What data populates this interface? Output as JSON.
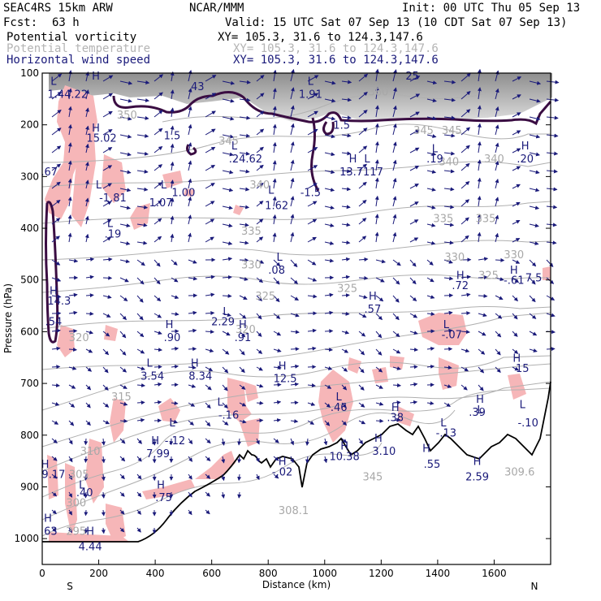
{
  "header": {
    "model": "SEAC4RS 15km ARW",
    "org": "NCAR/MMM",
    "init": "Init: 00 UTC Thu 05 Sep 13",
    "fcst_label": "Fcst:",
    "fcst_value": "63 h",
    "valid": "Valid: 15 UTC Sat 07 Sep 13 (10 CDT Sat 07 Sep 13)"
  },
  "legend": [
    {
      "name": "Potential vorticity",
      "xy": "XY= 105.3, 31.6 to 124.3,147.6",
      "color": "#000000"
    },
    {
      "name": "Potential temperature",
      "xy": "XY= 105.3, 31.6 to 124.3,147.6",
      "color": "#b4b4b4"
    },
    {
      "name": "Horizontal wind speed",
      "xy": "XY= 105.3, 31.6 to 124.3,147.6",
      "color": "#1a1a7a"
    }
  ],
  "chart_data": {
    "type": "cross-section",
    "xlabel": "Distance (km)",
    "ylabel": "Pressure (hPa)",
    "xlim": [
      0,
      1800
    ],
    "ylim": [
      1050,
      100
    ],
    "x_ticks": [
      "0",
      "200",
      "400",
      "600",
      "800",
      "1000",
      "1200",
      "1400",
      "1600"
    ],
    "x_tick_values": [
      0,
      200,
      400,
      600,
      800,
      1000,
      1200,
      1400,
      1600
    ],
    "y_ticks": [
      "100",
      "200",
      "300",
      "400",
      "500",
      "600",
      "700",
      "800",
      "900",
      "1000"
    ],
    "y_tick_values": [
      100,
      200,
      300,
      400,
      500,
      600,
      700,
      800,
      900,
      1000
    ],
    "endpoints": {
      "left": "S",
      "right": "N"
    },
    "theta_labels": [
      {
        "text": "350",
        "x": 300,
        "p": 180
      },
      {
        "text": "345",
        "x": 660,
        "p": 230
      },
      {
        "text": "345",
        "x": 1350,
        "p": 210
      },
      {
        "text": "345",
        "x": 1450,
        "p": 210
      },
      {
        "text": "340",
        "x": 770,
        "p": 315
      },
      {
        "text": "340",
        "x": 1440,
        "p": 270
      },
      {
        "text": "340",
        "x": 1600,
        "p": 265
      },
      {
        "text": "335",
        "x": 740,
        "p": 405
      },
      {
        "text": "335",
        "x": 1420,
        "p": 380
      },
      {
        "text": "335",
        "x": 1570,
        "p": 380
      },
      {
        "text": "330",
        "x": 740,
        "p": 470
      },
      {
        "text": "330",
        "x": 1460,
        "p": 455
      },
      {
        "text": "330",
        "x": 1670,
        "p": 450
      },
      {
        "text": "325",
        "x": 790,
        "p": 530
      },
      {
        "text": "325",
        "x": 1080,
        "p": 515
      },
      {
        "text": "325",
        "x": 1580,
        "p": 490
      },
      {
        "text": "320",
        "x": 130,
        "p": 610
      },
      {
        "text": "320",
        "x": 720,
        "p": 595
      },
      {
        "text": "315",
        "x": 280,
        "p": 725
      },
      {
        "text": "310",
        "x": 170,
        "p": 830
      },
      {
        "text": "305",
        "x": 130,
        "p": 875
      },
      {
        "text": "300",
        "x": 120,
        "p": 930
      },
      {
        "text": "295",
        "x": 120,
        "p": 985
      },
      {
        "text": "309.6",
        "x": 1690,
        "p": 870
      },
      {
        "text": "308.1",
        "x": 890,
        "p": 945
      },
      {
        "text": "360",
        "x": 1190,
        "p": 135
      },
      {
        "text": "345",
        "x": 1170,
        "p": 880
      }
    ],
    "hl_labels": [
      {
        "text": "L",
        "x": 40,
        "p": 115
      },
      {
        "text": "1.44.22",
        "x": 90,
        "p": 140
      },
      {
        "text": "H",
        "x": 190,
        "p": 105
      },
      {
        "text": "43",
        "x": 550,
        "p": 125
      },
      {
        "text": "L",
        "x": 950,
        "p": 115
      },
      {
        "text": "1.91",
        "x": 950,
        "p": 140
      },
      {
        "text": "25",
        "x": 1310,
        "p": 105
      },
      {
        "text": "H",
        "x": 190,
        "p": 205
      },
      {
        "text": "15.02",
        "x": 210,
        "p": 225
      },
      {
        "text": "1.5",
        "x": 460,
        "p": 220
      },
      {
        "text": "1.5",
        "x": 1060,
        "p": 200
      },
      {
        "text": "L",
        "x": 680,
        "p": 240
      },
      {
        "text": ".24.62",
        "x": 720,
        "p": 265
      },
      {
        "text": "L",
        "x": 1390,
        "p": 245
      },
      {
        "text": ".19",
        "x": 1390,
        "p": 265
      },
      {
        "text": "H",
        "x": 1710,
        "p": 240
      },
      {
        "text": ".20",
        "x": 1710,
        "p": 265
      },
      {
        "text": "H",
        "x": 1100,
        "p": 265
      },
      {
        "text": "L",
        "x": 1150,
        "p": 265
      },
      {
        "text": "13.7117",
        "x": 1130,
        "p": 290
      },
      {
        "text": ".67",
        "x": 25,
        "p": 290
      },
      {
        "text": "L",
        "x": 200,
        "p": 315
      },
      {
        "text": "-1.81",
        "x": 250,
        "p": 340
      },
      {
        "text": "L",
        "x": 430,
        "p": 315
      },
      {
        "text": "1.00",
        "x": 500,
        "p": 330
      },
      {
        "text": "1.07",
        "x": 420,
        "p": 350
      },
      {
        "text": "L",
        "x": 810,
        "p": 325
      },
      {
        "text": "1.62",
        "x": 830,
        "p": 355
      },
      {
        "text": "-1.5",
        "x": 950,
        "p": 330
      },
      {
        "text": "L",
        "x": 240,
        "p": 390
      },
      {
        "text": ".19",
        "x": 250,
        "p": 410
      },
      {
        "text": "L",
        "x": 840,
        "p": 455
      },
      {
        "text": ".08",
        "x": 830,
        "p": 480
      },
      {
        "text": "H",
        "x": 1480,
        "p": 490
      },
      {
        "text": ".72",
        "x": 1480,
        "p": 510
      },
      {
        "text": "H",
        "x": 1670,
        "p": 480
      },
      {
        "text": "-.61",
        "x": 1670,
        "p": 500
      },
      {
        "text": "7.5",
        "x": 1740,
        "p": 495
      },
      {
        "text": "H",
        "x": 40,
        "p": 520
      },
      {
        "text": "14.3",
        "x": 60,
        "p": 540
      },
      {
        "text": "H",
        "x": 1170,
        "p": 530
      },
      {
        "text": ".57",
        "x": 1170,
        "p": 555
      },
      {
        "text": ".54",
        "x": 40,
        "p": 580
      },
      {
        "text": "L",
        "x": 650,
        "p": 560
      },
      {
        "text": "2.29",
        "x": 640,
        "p": 580
      },
      {
        "text": "H",
        "x": 450,
        "p": 585
      },
      {
        "text": ".90",
        "x": 460,
        "p": 610
      },
      {
        "text": "H",
        "x": 710,
        "p": 585
      },
      {
        "text": ".91",
        "x": 710,
        "p": 610
      },
      {
        "text": "L",
        "x": 1430,
        "p": 585
      },
      {
        "text": "-.07",
        "x": 1450,
        "p": 605
      },
      {
        "text": "L",
        "x": 380,
        "p": 660
      },
      {
        "text": "3.54",
        "x": 390,
        "p": 685
      },
      {
        "text": "H",
        "x": 540,
        "p": 660
      },
      {
        "text": "8.34",
        "x": 560,
        "p": 685
      },
      {
        "text": "H",
        "x": 850,
        "p": 665
      },
      {
        "text": "12.5",
        "x": 860,
        "p": 690
      },
      {
        "text": "H",
        "x": 1680,
        "p": 650
      },
      {
        "text": "15",
        "x": 1700,
        "p": 670
      },
      {
        "text": "L",
        "x": 630,
        "p": 735
      },
      {
        "text": "-.16",
        "x": 660,
        "p": 760
      },
      {
        "text": "L",
        "x": 1050,
        "p": 725
      },
      {
        "text": ".46",
        "x": 1050,
        "p": 745
      },
      {
        "text": "H",
        "x": 1550,
        "p": 730
      },
      {
        "text": "L",
        "x": 1550,
        "p": 750
      },
      {
        "text": ".39",
        "x": 1540,
        "p": 755
      },
      {
        "text": "H",
        "x": 1250,
        "p": 745
      },
      {
        "text": ".38",
        "x": 1250,
        "p": 765
      },
      {
        "text": "L",
        "x": 1420,
        "p": 775
      },
      {
        "text": "L",
        "x": 1700,
        "p": 740
      },
      {
        "text": "-.10",
        "x": 1720,
        "p": 775
      },
      {
        "text": "L",
        "x": 460,
        "p": 775
      },
      {
        "text": "H",
        "x": 400,
        "p": 810
      },
      {
        "text": "-.12",
        "x": 470,
        "p": 810
      },
      {
        "text": "7.99",
        "x": 410,
        "p": 835
      },
      {
        "text": "-.13",
        "x": 1430,
        "p": 795
      },
      {
        "text": "H",
        "x": 1190,
        "p": 805
      },
      {
        "text": "3.10",
        "x": 1210,
        "p": 830
      },
      {
        "text": "H",
        "x": 1070,
        "p": 820
      },
      {
        "text": "10.38",
        "x": 1070,
        "p": 840
      },
      {
        "text": "H",
        "x": 1360,
        "p": 825
      },
      {
        "text": ".55",
        "x": 1380,
        "p": 855
      },
      {
        "text": "H",
        "x": 1540,
        "p": 850
      },
      {
        "text": "2.59",
        "x": 1540,
        "p": 880
      },
      {
        "text": "H",
        "x": 10,
        "p": 855
      },
      {
        "text": "9.17",
        "x": 40,
        "p": 875
      },
      {
        "text": "H",
        "x": 850,
        "p": 850
      },
      {
        "text": "-.02",
        "x": 850,
        "p": 870
      },
      {
        "text": "L",
        "x": 140,
        "p": 895
      },
      {
        "text": ".40",
        "x": 150,
        "p": 910
      },
      {
        "text": "H",
        "x": 420,
        "p": 895
      },
      {
        "text": ".75",
        "x": 430,
        "p": 920
      },
      {
        "text": "H",
        "x": 20,
        "p": 960
      },
      {
        "text": "63",
        "x": 30,
        "p": 985
      },
      {
        "text": "H",
        "x": 170,
        "p": 985
      },
      {
        "text": "4.44",
        "x": 170,
        "p": 1015
      }
    ]
  }
}
